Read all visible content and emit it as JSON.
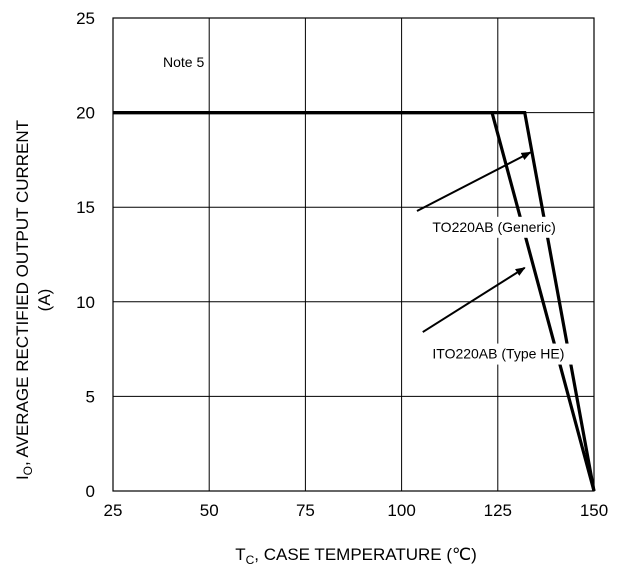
{
  "chart_data": {
    "type": "line",
    "xlabel_main": "T",
    "xlabel_sub": "C",
    "xlabel_rest": ", CASE TEMPERATURE (℃)",
    "ylabel_line1_main": "I",
    "ylabel_line1_sub": "O",
    "ylabel_line1_rest": ", AVERAGE RECTIFIED OUTPUT CURRENT",
    "ylabel_line2": "(A)",
    "xlim": [
      25,
      150
    ],
    "ylim": [
      0,
      25
    ],
    "x_ticks": [
      25,
      50,
      75,
      100,
      125,
      150
    ],
    "y_ticks": [
      0,
      5,
      10,
      15,
      20,
      25
    ],
    "grid": true,
    "series": [
      {
        "x": [
          25,
          123.5,
          150
        ],
        "y": [
          20,
          20,
          0
        ]
      },
      {
        "x": [
          25,
          132,
          150
        ],
        "y": [
          20,
          20,
          0
        ]
      }
    ],
    "annotations": [
      {
        "text": "Note 5",
        "x": 38,
        "y": 22.4
      },
      {
        "text": "TO220AB (Generic)",
        "x": 108,
        "y": 13.7,
        "arrow_from": [
          104,
          14.8
        ],
        "arrow_to": [
          133.5,
          17.9
        ]
      },
      {
        "text": "ITO220AB (Type HE)",
        "x": 108,
        "y": 7.0,
        "arrow_from": [
          105.5,
          8.4
        ],
        "arrow_to": [
          132,
          11.8
        ]
      }
    ]
  }
}
